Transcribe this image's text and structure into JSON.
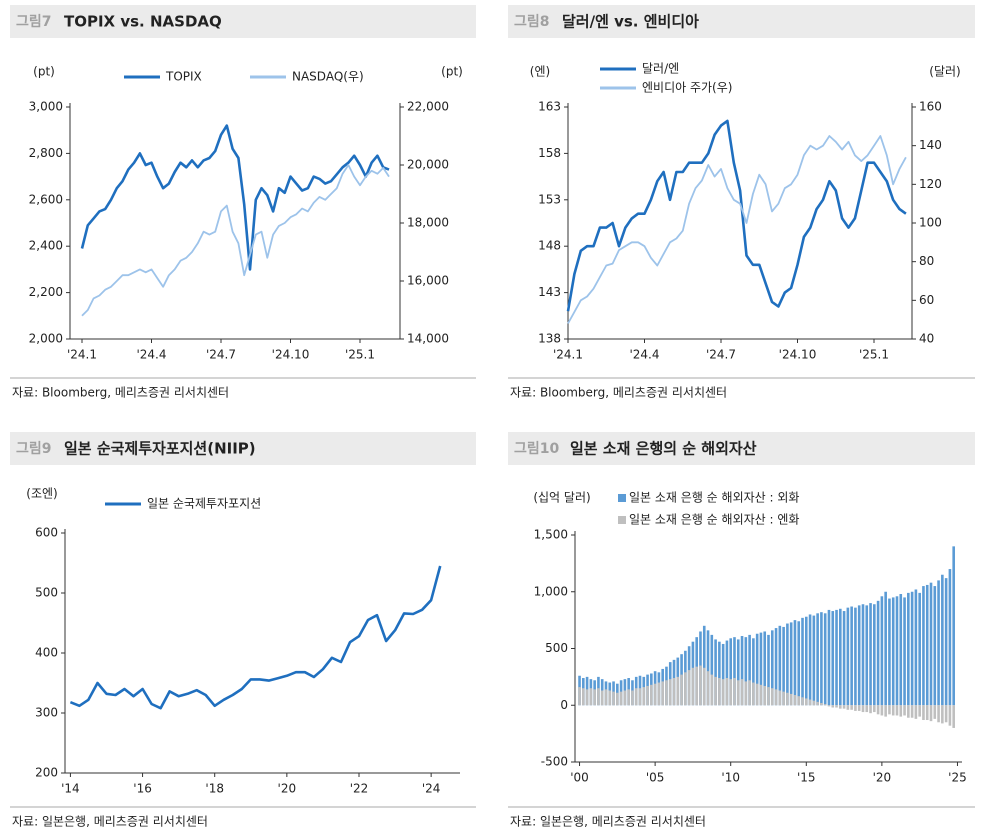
{
  "chart_data": [
    {
      "type": "line",
      "figure_label": "그림7",
      "title": "TOPIX vs. NASDAQ",
      "y_label": "(pt)",
      "y2_label": "(pt)",
      "source": "자료: Bloomberg, 메리츠증권 리서치센터",
      "categories": [
        "'24.1",
        null,
        null,
        null,
        null,
        null,
        null,
        null,
        null,
        null,
        null,
        null,
        "'24.4",
        null,
        null,
        null,
        null,
        null,
        null,
        null,
        null,
        null,
        null,
        null,
        "'24.7",
        null,
        null,
        null,
        null,
        null,
        null,
        null,
        null,
        null,
        null,
        null,
        "'24.10",
        null,
        null,
        null,
        null,
        null,
        null,
        null,
        null,
        null,
        null,
        null,
        "'25.1",
        null,
        null,
        null,
        null,
        null
      ],
      "ylim": [
        2000,
        3000
      ],
      "yticks": [
        {
          "value": 2000,
          "label": "2,000"
        },
        {
          "value": 2200,
          "label": "2,200"
        },
        {
          "value": 2400,
          "label": "2,400"
        },
        {
          "value": 2600,
          "label": "2,600"
        },
        {
          "value": 2800,
          "label": "2,800"
        },
        {
          "value": 3000,
          "label": "3,000"
        }
      ],
      "y2lim": [
        14000,
        22000
      ],
      "y2ticks": [
        {
          "value": 14000,
          "label": "14,000"
        },
        {
          "value": 16000,
          "label": "16,000"
        },
        {
          "value": 18000,
          "label": "18,000"
        },
        {
          "value": 20000,
          "label": "20,000"
        },
        {
          "value": 22000,
          "label": "22,000"
        }
      ],
      "series": [
        {
          "name": "TOPIX",
          "color": "#1f6fbf",
          "values": [
            2390,
            2490,
            2520,
            2550,
            2560,
            2600,
            2650,
            2680,
            2730,
            2760,
            2800,
            2750,
            2760,
            2700,
            2650,
            2670,
            2720,
            2760,
            2740,
            2770,
            2740,
            2770,
            2780,
            2810,
            2880,
            2920,
            2820,
            2780,
            2580,
            2300,
            2600,
            2650,
            2620,
            2550,
            2650,
            2630,
            2700,
            2670,
            2640,
            2650,
            2700,
            2690,
            2670,
            2680,
            2710,
            2740,
            2760,
            2790,
            2750,
            2700,
            2760,
            2790,
            2740,
            2730
          ]
        },
        {
          "name": "NASDAQ(우)",
          "color": "#9dc3ea",
          "axis": "y2",
          "values": [
            14800,
            15000,
            15400,
            15500,
            15700,
            15800,
            16000,
            16200,
            16200,
            16300,
            16400,
            16300,
            16400,
            16100,
            15800,
            16200,
            16400,
            16700,
            16800,
            17000,
            17300,
            17700,
            17600,
            17700,
            18400,
            18600,
            17700,
            17300,
            16200,
            16900,
            17600,
            17700,
            16800,
            17600,
            17900,
            18000,
            18200,
            18300,
            18500,
            18400,
            18700,
            18900,
            18800,
            19000,
            19200,
            19700,
            20000,
            19600,
            19300,
            19600,
            19800,
            19700,
            19900,
            19600
          ]
        }
      ]
    },
    {
      "type": "line",
      "figure_label": "그림8",
      "title": "달러/엔 vs. 엔비디아",
      "y_label": "(엔)",
      "y2_label": "(달러)",
      "source": "자료: Bloomberg, 메리츠증권 리서치센터",
      "categories": [
        "'24.1",
        null,
        null,
        null,
        null,
        null,
        null,
        null,
        null,
        null,
        null,
        null,
        "'24.4",
        null,
        null,
        null,
        null,
        null,
        null,
        null,
        null,
        null,
        null,
        null,
        "'24.7",
        null,
        null,
        null,
        null,
        null,
        null,
        null,
        null,
        null,
        null,
        null,
        "'24.10",
        null,
        null,
        null,
        null,
        null,
        null,
        null,
        null,
        null,
        null,
        null,
        "'25.1",
        null,
        null,
        null,
        null,
        null
      ],
      "ylim": [
        138,
        163
      ],
      "yticks": [
        138,
        143,
        148,
        153,
        158,
        163
      ],
      "y2lim": [
        40,
        160
      ],
      "y2ticks": [
        40,
        60,
        80,
        100,
        120,
        140,
        160
      ],
      "series": [
        {
          "name": "달러/엔",
          "color": "#1f6fbf",
          "values": [
            141,
            145,
            147.5,
            148,
            148,
            150,
            150,
            150.5,
            148,
            150,
            151,
            151.5,
            151.5,
            153,
            155,
            156,
            153,
            156,
            156,
            157,
            157,
            157,
            158,
            160,
            161,
            161.5,
            157,
            154,
            147,
            146,
            146,
            144,
            142,
            141.5,
            143,
            143.5,
            146,
            149,
            150,
            152,
            153,
            155,
            154,
            151,
            150,
            151,
            154,
            157,
            157,
            156,
            155,
            153,
            152,
            151.5
          ]
        },
        {
          "name": "엔비디아 주가(우)",
          "color": "#9dc3ea",
          "axis": "y2",
          "values": [
            48,
            54,
            60,
            62,
            66,
            72,
            78,
            79,
            86,
            88,
            90,
            90,
            88,
            82,
            78,
            84,
            90,
            92,
            96,
            110,
            118,
            122,
            130,
            124,
            128,
            118,
            112,
            110,
            100,
            115,
            125,
            120,
            106,
            110,
            118,
            120,
            125,
            135,
            140,
            138,
            140,
            145,
            142,
            138,
            142,
            135,
            132,
            135,
            140,
            145,
            135,
            120,
            128,
            134
          ]
        }
      ]
    },
    {
      "type": "line",
      "figure_label": "그림9",
      "title": "일본 순국제투자포지션(NIIP)",
      "y_label": "(조엔)",
      "source": "자료: 일본은행, 메리츠증권 리서치센터",
      "xlim": [
        2013.85,
        2024.8
      ],
      "xticks": [
        {
          "value": 2014,
          "label": "'14"
        },
        {
          "value": 2016,
          "label": "'16"
        },
        {
          "value": 2018,
          "label": "'18"
        },
        {
          "value": 2020,
          "label": "'20"
        },
        {
          "value": 2022,
          "label": "'22"
        },
        {
          "value": 2024,
          "label": "'24"
        }
      ],
      "ylim": [
        200,
        600
      ],
      "yticks": [
        200,
        300,
        400,
        500,
        600
      ],
      "x": [
        2014,
        2014.25,
        2014.5,
        2014.75,
        2015,
        2015.25,
        2015.5,
        2015.75,
        2016,
        2016.25,
        2016.5,
        2016.75,
        2017,
        2017.25,
        2017.5,
        2017.75,
        2018,
        2018.25,
        2018.5,
        2018.75,
        2019,
        2019.25,
        2019.5,
        2019.75,
        2020,
        2020.25,
        2020.5,
        2020.75,
        2021,
        2021.25,
        2021.5,
        2021.75,
        2022,
        2022.25,
        2022.5,
        2022.75,
        2023,
        2023.25,
        2023.5,
        2023.75,
        2024,
        2024.25
      ],
      "series": [
        {
          "name": "일본 순국제투자포지션",
          "color": "#1f6fbf",
          "values": [
            318,
            312,
            322,
            350,
            332,
            330,
            340,
            328,
            340,
            315,
            308,
            336,
            328,
            332,
            338,
            330,
            312,
            322,
            330,
            340,
            356,
            356,
            354,
            358,
            362,
            368,
            368,
            360,
            373,
            392,
            385,
            418,
            428,
            455,
            463,
            420,
            438,
            466,
            465,
            472,
            488,
            545
          ]
        }
      ]
    },
    {
      "type": "bar",
      "figure_label": "그림10",
      "title": "일본 소재 은행의 순 해외자산",
      "y_label": "(십억 달러)",
      "source": "자료: 일본은행, 메리츠증권 리서치센터",
      "xlim": [
        1999.7,
        2025.3
      ],
      "xticks": [
        {
          "value": 2000,
          "label": "'00"
        },
        {
          "value": 2005,
          "label": "'05"
        },
        {
          "value": 2010,
          "label": "'10"
        },
        {
          "value": 2015,
          "label": "'15"
        },
        {
          "value": 2020,
          "label": "'20"
        },
        {
          "value": 2025,
          "label": "'25"
        }
      ],
      "ylim": [
        -500,
        1500
      ],
      "yticks": [
        -500,
        0,
        500,
        {
          "value": 1000,
          "label": "1,000"
        },
        {
          "value": 1500,
          "label": "1,500"
        }
      ],
      "x": [
        2000,
        2000.25,
        2000.5,
        2000.75,
        2001,
        2001.25,
        2001.5,
        2001.75,
        2002,
        2002.25,
        2002.5,
        2002.75,
        2003,
        2003.25,
        2003.5,
        2003.75,
        2004,
        2004.25,
        2004.5,
        2004.75,
        2005,
        2005.25,
        2005.5,
        2005.75,
        2006,
        2006.25,
        2006.5,
        2006.75,
        2007,
        2007.25,
        2007.5,
        2007.75,
        2008,
        2008.25,
        2008.5,
        2008.75,
        2009,
        2009.25,
        2009.5,
        2009.75,
        2010,
        2010.25,
        2010.5,
        2010.75,
        2011,
        2011.25,
        2011.5,
        2011.75,
        2012,
        2012.25,
        2012.5,
        2012.75,
        2013,
        2013.25,
        2013.5,
        2013.75,
        2014,
        2014.25,
        2014.5,
        2014.75,
        2015,
        2015.25,
        2015.5,
        2015.75,
        2016,
        2016.25,
        2016.5,
        2016.75,
        2017,
        2017.25,
        2017.5,
        2017.75,
        2018,
        2018.25,
        2018.5,
        2018.75,
        2019,
        2019.25,
        2019.5,
        2019.75,
        2020,
        2020.25,
        2020.5,
        2020.75,
        2021,
        2021.25,
        2021.5,
        2021.75,
        2022,
        2022.25,
        2022.5,
        2022.75,
        2023,
        2023.25,
        2023.5,
        2023.75,
        2024,
        2024.25,
        2024.5,
        2024.75
      ],
      "series": [
        {
          "name": "일본 소재 은행 순 해외자산 : 외화",
          "color": "#5b9bd5",
          "values": [
            260,
            240,
            250,
            230,
            220,
            250,
            230,
            210,
            200,
            210,
            190,
            220,
            230,
            240,
            220,
            250,
            260,
            250,
            270,
            280,
            300,
            290,
            320,
            340,
            380,
            400,
            420,
            450,
            480,
            520,
            560,
            600,
            650,
            700,
            660,
            620,
            580,
            560,
            540,
            570,
            590,
            600,
            580,
            610,
            600,
            620,
            590,
            630,
            640,
            650,
            620,
            660,
            680,
            700,
            690,
            720,
            730,
            750,
            740,
            770,
            780,
            800,
            790,
            810,
            820,
            810,
            840,
            830,
            840,
            850,
            830,
            860,
            870,
            860,
            880,
            890,
            880,
            900,
            890,
            920,
            960,
            1000,
            940,
            950,
            960,
            980,
            950,
            990,
            1000,
            1020,
            990,
            1050,
            1060,
            1080,
            1050,
            1100,
            1150,
            1120,
            1200,
            1400
          ]
        },
        {
          "name": "일본 소재 은행 순 해외자산 : 엔화",
          "color": "#bfbfbf",
          "values": [
            160,
            150,
            140,
            150,
            140,
            150,
            130,
            140,
            130,
            120,
            110,
            120,
            130,
            140,
            130,
            150,
            150,
            160,
            170,
            180,
            190,
            200,
            210,
            220,
            230,
            240,
            250,
            270,
            290,
            310,
            330,
            340,
            350,
            330,
            300,
            270,
            250,
            240,
            230,
            240,
            230,
            240,
            220,
            230,
            210,
            220,
            200,
            190,
            180,
            170,
            160,
            150,
            140,
            130,
            120,
            110,
            100,
            90,
            80,
            70,
            60,
            50,
            40,
            30,
            20,
            10,
            -10,
            -20,
            -20,
            -30,
            -30,
            -40,
            -40,
            -50,
            -50,
            -60,
            -60,
            -70,
            -60,
            -80,
            -90,
            -100,
            -80,
            -90,
            -90,
            -100,
            -90,
            -110,
            -110,
            -120,
            -100,
            -130,
            -130,
            -140,
            -120,
            -150,
            -160,
            -150,
            -180,
            -200
          ]
        }
      ]
    }
  ]
}
